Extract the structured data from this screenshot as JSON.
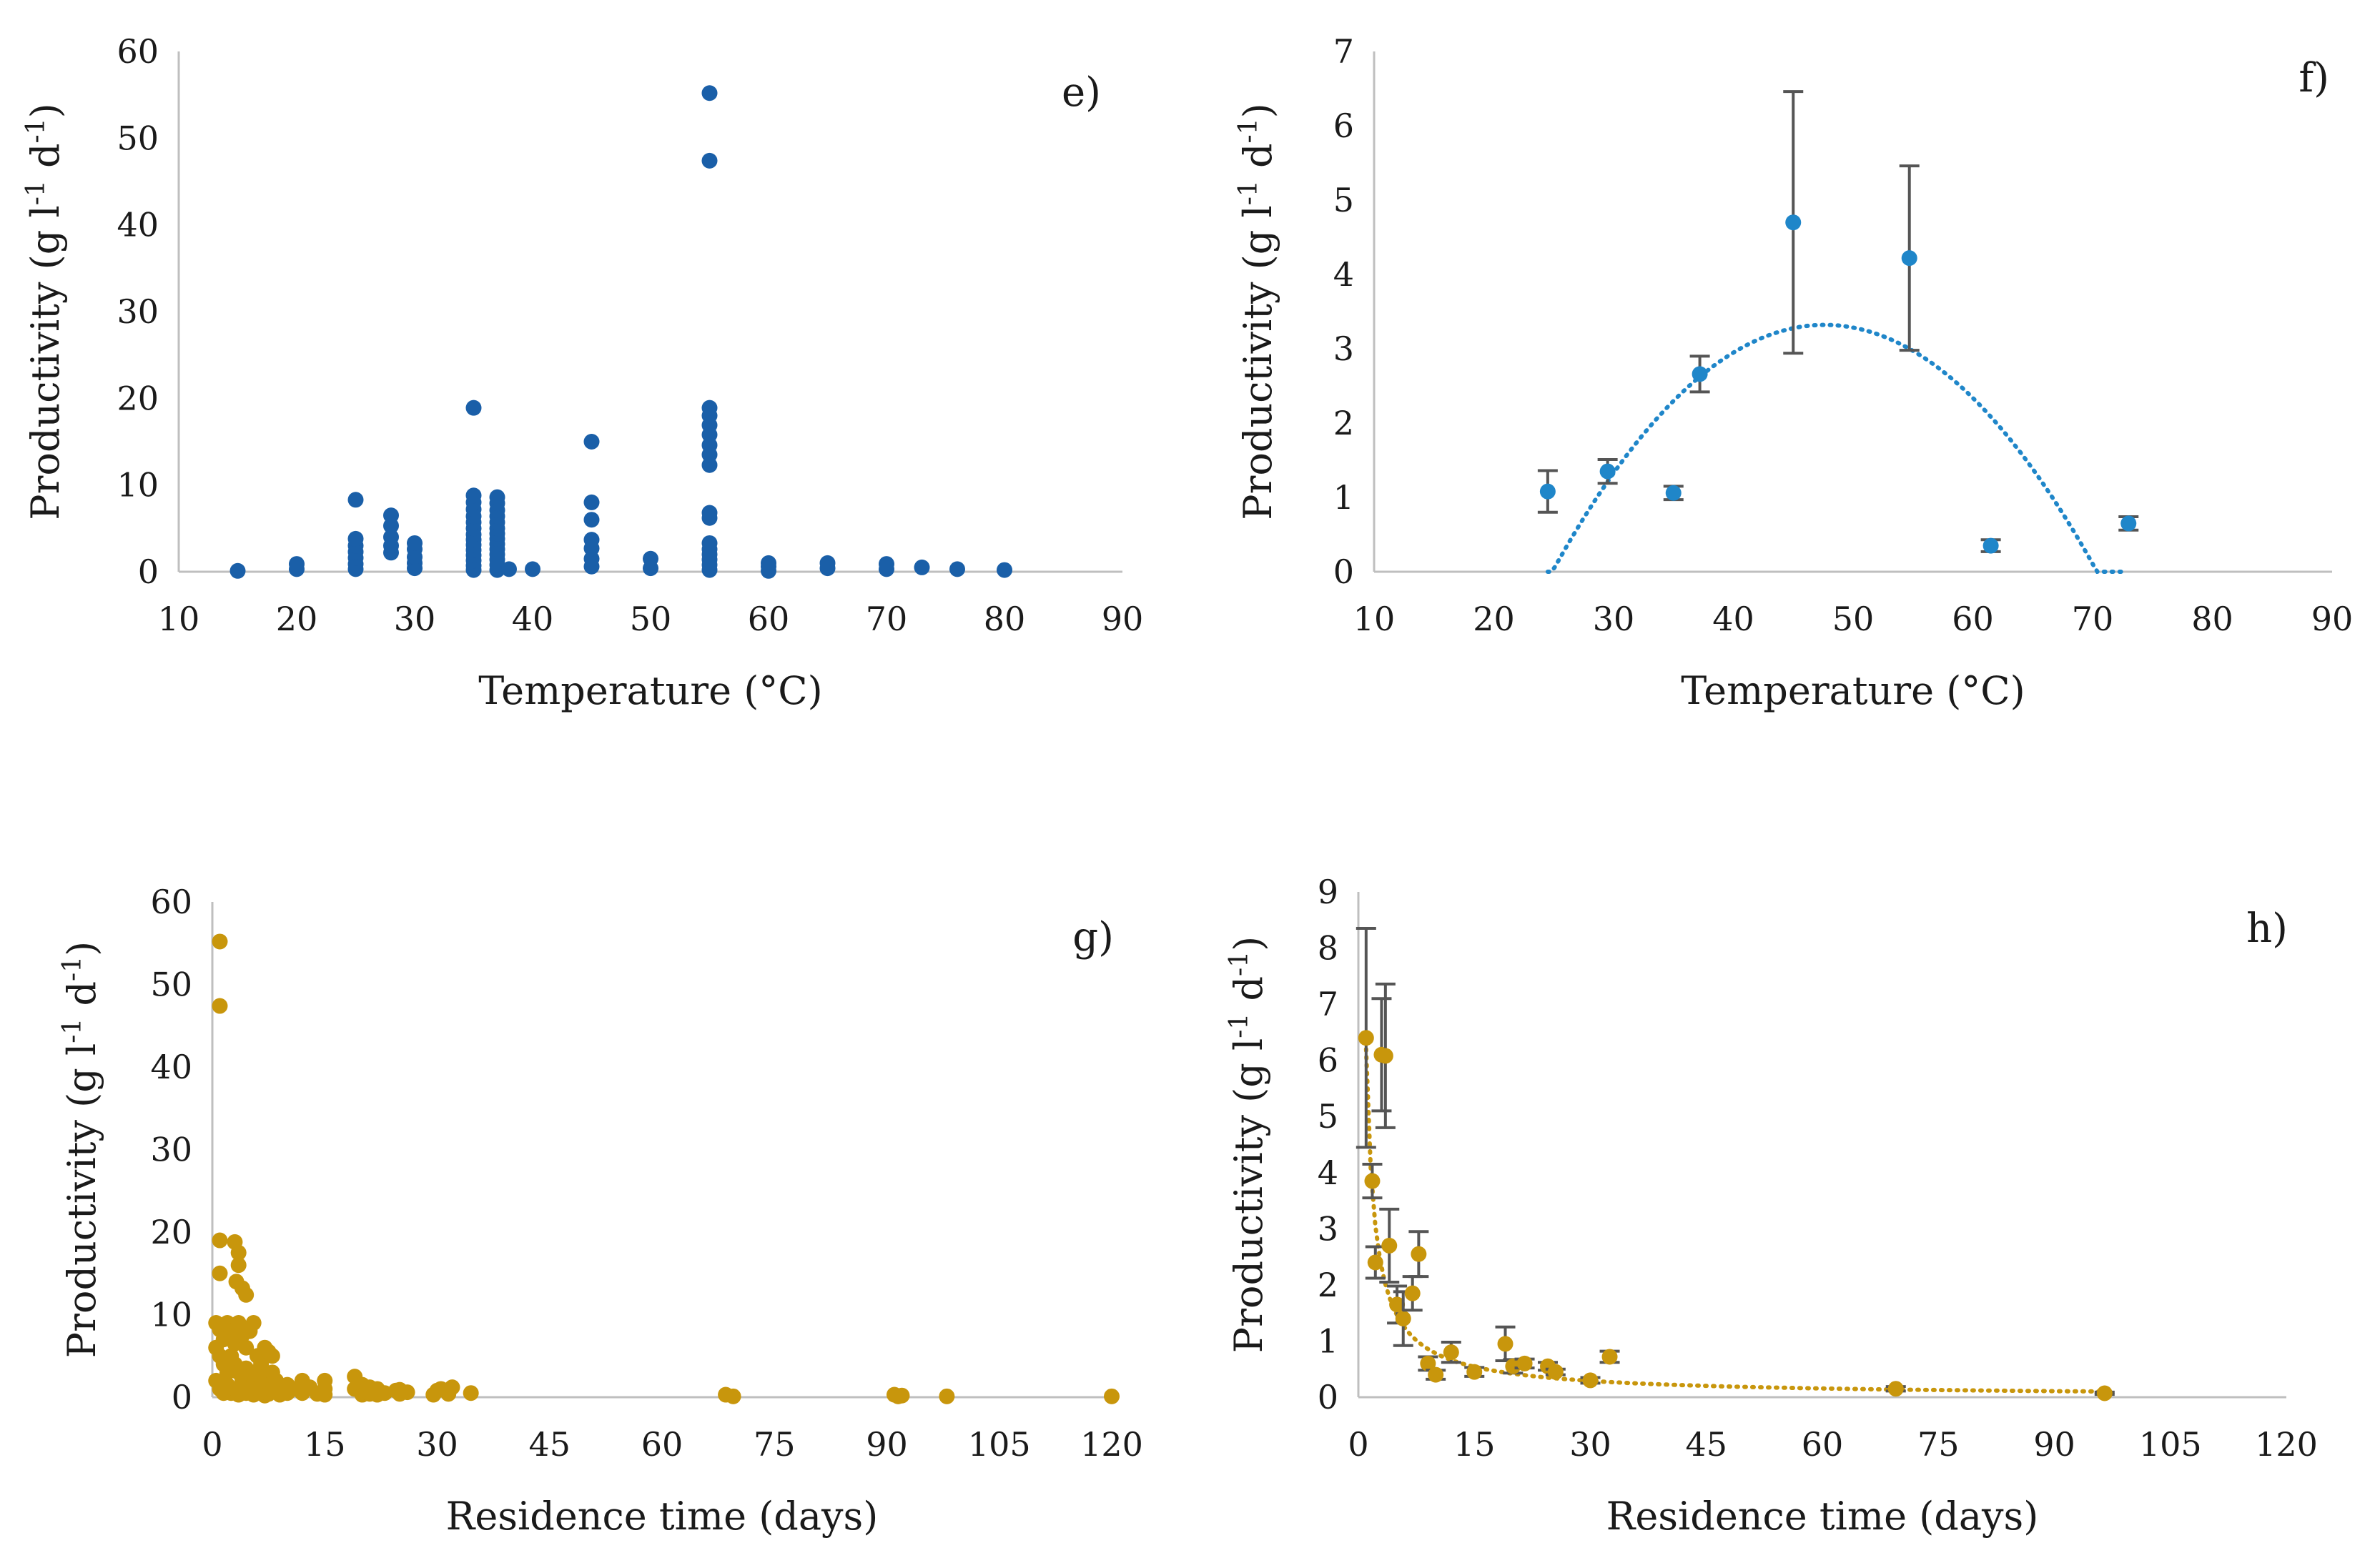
{
  "colors": {
    "blue": "#1a5fa8",
    "blue_light": "#1f86c9",
    "gold": "#c8960c",
    "errorbar": "#555555",
    "axis": "#bfbfbf",
    "text": "#1a1a1a"
  },
  "chart_data": [
    {
      "panel": "e)",
      "type": "scatter",
      "title": "",
      "xlabel": "Temperature (°C)",
      "ylabel": "Productivity (g l-1 d-1)",
      "xlim": [
        10,
        90
      ],
      "ylim": [
        0,
        60
      ],
      "xticks": [
        10,
        20,
        30,
        40,
        50,
        60,
        70,
        80,
        90
      ],
      "yticks": [
        0,
        10,
        20,
        30,
        40,
        50,
        60
      ],
      "grid": false,
      "marker_color": "#1a5fa8",
      "points": [
        [
          15,
          0.1
        ],
        [
          20,
          0.3
        ],
        [
          20,
          0.9
        ],
        [
          25,
          0.3
        ],
        [
          25,
          0.9
        ],
        [
          25,
          1.6
        ],
        [
          25,
          2.3
        ],
        [
          25,
          3.0
        ],
        [
          25,
          3.8
        ],
        [
          25,
          8.3
        ],
        [
          28,
          2.2
        ],
        [
          28,
          3.0
        ],
        [
          28,
          4.0
        ],
        [
          28,
          5.3
        ],
        [
          28,
          6.5
        ],
        [
          30,
          0.4
        ],
        [
          30,
          1.0
        ],
        [
          30,
          1.7
        ],
        [
          30,
          2.6
        ],
        [
          30,
          3.3
        ],
        [
          35,
          0.2
        ],
        [
          35,
          0.7
        ],
        [
          35,
          1.3
        ],
        [
          35,
          1.9
        ],
        [
          35,
          2.5
        ],
        [
          35,
          3.1
        ],
        [
          35,
          3.7
        ],
        [
          35,
          4.3
        ],
        [
          35,
          5.0
        ],
        [
          35,
          5.7
        ],
        [
          35,
          6.4
        ],
        [
          35,
          7.2
        ],
        [
          35,
          8.0
        ],
        [
          35,
          8.8
        ],
        [
          35,
          18.9
        ],
        [
          37,
          0.2
        ],
        [
          37,
          0.8
        ],
        [
          37,
          1.4
        ],
        [
          37,
          2.0
        ],
        [
          37,
          2.6
        ],
        [
          37,
          3.2
        ],
        [
          37,
          3.8
        ],
        [
          37,
          4.4
        ],
        [
          37,
          5.0
        ],
        [
          37,
          5.7
        ],
        [
          37,
          6.4
        ],
        [
          37,
          7.1
        ],
        [
          37,
          7.9
        ],
        [
          37,
          8.6
        ],
        [
          38,
          0.3
        ],
        [
          40,
          0.3
        ],
        [
          45,
          0.6
        ],
        [
          45,
          1.5
        ],
        [
          45,
          2.7
        ],
        [
          45,
          3.7
        ],
        [
          45,
          6.0
        ],
        [
          45,
          8.0
        ],
        [
          45,
          15.0
        ],
        [
          50,
          0.4
        ],
        [
          50,
          1.5
        ],
        [
          55,
          0.2
        ],
        [
          55,
          0.8
        ],
        [
          55,
          1.4
        ],
        [
          55,
          2.0
        ],
        [
          55,
          2.6
        ],
        [
          55,
          3.3
        ],
        [
          55,
          6.2
        ],
        [
          55,
          6.8
        ],
        [
          55,
          12.3
        ],
        [
          55,
          13.5
        ],
        [
          55,
          14.6
        ],
        [
          55,
          15.8
        ],
        [
          55,
          16.9
        ],
        [
          55,
          18.0
        ],
        [
          55,
          18.9
        ],
        [
          55,
          47.4
        ],
        [
          55,
          55.2
        ],
        [
          60,
          0.1
        ],
        [
          60,
          0.6
        ],
        [
          60,
          1.0
        ],
        [
          65,
          0.4
        ],
        [
          65,
          1.0
        ],
        [
          70,
          0.3
        ],
        [
          70,
          0.9
        ],
        [
          73,
          0.5
        ],
        [
          76,
          0.3
        ],
        [
          80,
          0.2
        ]
      ]
    },
    {
      "panel": "f)",
      "type": "scatter",
      "title": "",
      "xlabel": "Temperature (°C)",
      "ylabel": "Productivity (g l-1 d-1)",
      "xlim": [
        10,
        90
      ],
      "ylim": [
        0,
        7
      ],
      "xticks": [
        10,
        20,
        30,
        40,
        50,
        60,
        70,
        80,
        90
      ],
      "yticks": [
        0,
        1,
        2,
        3,
        4,
        5,
        6,
        7
      ],
      "grid": false,
      "marker_color": "#1f86c9",
      "points": [
        {
          "x": 24.5,
          "y": 1.08,
          "err": 0.28
        },
        {
          "x": 29.5,
          "y": 1.35,
          "err": 0.16
        },
        {
          "x": 35.0,
          "y": 1.06,
          "err": 0.09
        },
        {
          "x": 37.2,
          "y": 2.66,
          "err": 0.24
        },
        {
          "x": 45.0,
          "y": 4.7,
          "err": 1.76
        },
        {
          "x": 54.7,
          "y": 4.22,
          "err": 1.24
        },
        {
          "x": 61.5,
          "y": 0.35,
          "err": 0.08
        },
        {
          "x": 73.0,
          "y": 0.65,
          "err": 0.09
        }
      ],
      "trendline": {
        "style": "dotted",
        "type": "polynomial-2",
        "x_range": [
          24.5,
          72.5
        ],
        "coefficients": [
          -0.00642,
          0.6115,
          -11.24
        ]
      }
    },
    {
      "panel": "g)",
      "type": "scatter",
      "title": "",
      "xlabel": "Residence time (days)",
      "ylabel": "Productivity (g l-1 d-1)",
      "xlim": [
        0,
        120
      ],
      "ylim": [
        0,
        60
      ],
      "xticks": [
        0,
        15,
        30,
        45,
        60,
        75,
        90,
        105,
        120
      ],
      "yticks": [
        0,
        10,
        20,
        30,
        40,
        50,
        60
      ],
      "grid": false,
      "marker_color": "#c8960c",
      "points": [
        [
          1,
          55.2
        ],
        [
          1,
          47.4
        ],
        [
          1,
          19.0
        ],
        [
          1,
          15.0
        ],
        [
          3,
          18.8
        ],
        [
          3.5,
          17.5
        ],
        [
          3.5,
          16.0
        ],
        [
          3.2,
          14.0
        ],
        [
          4.0,
          13.2
        ],
        [
          4.5,
          12.4
        ],
        [
          0.5,
          9.0
        ],
        [
          1.0,
          8.2
        ],
        [
          1.5,
          7.0
        ],
        [
          2.0,
          9.0
        ],
        [
          2.5,
          8.0
        ],
        [
          3.0,
          6.5
        ],
        [
          3.5,
          9.0
        ],
        [
          4.0,
          7.5
        ],
        [
          4.5,
          6.0
        ],
        [
          5.0,
          8.0
        ],
        [
          5.5,
          9.0
        ],
        [
          6.0,
          5.0
        ],
        [
          6.5,
          4.0
        ],
        [
          7.0,
          6.0
        ],
        [
          7.5,
          5.5
        ],
        [
          8.0,
          5.0
        ],
        [
          0.5,
          6.0
        ],
        [
          1.0,
          5.0
        ],
        [
          1.5,
          4.0
        ],
        [
          2.0,
          3.0
        ],
        [
          2.5,
          5.0
        ],
        [
          3.0,
          4.0
        ],
        [
          3.5,
          3.0
        ],
        [
          4.0,
          2.0
        ],
        [
          4.5,
          3.5
        ],
        [
          5.0,
          2.5
        ],
        [
          5.5,
          3.0
        ],
        [
          6.0,
          2.0
        ],
        [
          6.5,
          1.5
        ],
        [
          7.0,
          2.5
        ],
        [
          7.5,
          1.0
        ],
        [
          8.0,
          3.0
        ],
        [
          8.5,
          2.0
        ],
        [
          0.5,
          2.0
        ],
        [
          1.0,
          1.0
        ],
        [
          1.5,
          0.5
        ],
        [
          2.0,
          1.5
        ],
        [
          2.5,
          0.5
        ],
        [
          3.0,
          1.0
        ],
        [
          3.5,
          0.3
        ],
        [
          4.0,
          1.2
        ],
        [
          4.5,
          0.5
        ],
        [
          5.0,
          1.0
        ],
        [
          5.5,
          0.3
        ],
        [
          6.0,
          1.0
        ],
        [
          6.5,
          0.5
        ],
        [
          7.0,
          0.2
        ],
        [
          7.5,
          0.4
        ],
        [
          8.0,
          0.8
        ],
        [
          9.0,
          0.3
        ],
        [
          10.0,
          0.5
        ],
        [
          10.0,
          1.5
        ],
        [
          11.0,
          1.0
        ],
        [
          12.0,
          0.5
        ],
        [
          12.0,
          2.0
        ],
        [
          13.0,
          1.2
        ],
        [
          14.0,
          0.4
        ],
        [
          15.0,
          0.3
        ],
        [
          15.0,
          1.0
        ],
        [
          15.0,
          2.0
        ],
        [
          19.0,
          2.5
        ],
        [
          19.0,
          1.0
        ],
        [
          20.0,
          0.3
        ],
        [
          20.0,
          1.5
        ],
        [
          20.5,
          0.6
        ],
        [
          21.0,
          0.4
        ],
        [
          21.0,
          1.2
        ],
        [
          22.0,
          0.3
        ],
        [
          22.0,
          1.0
        ],
        [
          23.0,
          0.5
        ],
        [
          24.5,
          0.8
        ],
        [
          25.0,
          0.4
        ],
        [
          25.0,
          0.9
        ],
        [
          26.0,
          0.6
        ],
        [
          29.5,
          0.3
        ],
        [
          30.0,
          0.8
        ],
        [
          30.5,
          1.0
        ],
        [
          31.5,
          0.4
        ],
        [
          32.0,
          1.2
        ],
        [
          34.5,
          0.5
        ],
        [
          68.5,
          0.3
        ],
        [
          69.5,
          0.1
        ],
        [
          91.0,
          0.3
        ],
        [
          91.5,
          0.1
        ],
        [
          92.0,
          0.2
        ],
        [
          98.0,
          0.1
        ],
        [
          120.0,
          0.1
        ]
      ]
    },
    {
      "panel": "h)",
      "type": "scatter",
      "title": "",
      "xlabel": "Residence time (days)",
      "ylabel": "Productivity (g l-1 d-1)",
      "xlim": [
        0,
        120
      ],
      "ylim": [
        0,
        9
      ],
      "xticks": [
        0,
        15,
        30,
        45,
        60,
        75,
        90,
        105,
        120
      ],
      "yticks": [
        0,
        1,
        2,
        3,
        4,
        5,
        6,
        7,
        8,
        9
      ],
      "grid": false,
      "marker_color": "#c8960c",
      "points": [
        {
          "x": 1.0,
          "y": 6.4,
          "err": 1.95
        },
        {
          "x": 1.8,
          "y": 3.85,
          "err": 0.3
        },
        {
          "x": 2.2,
          "y": 2.4,
          "err": 0.28
        },
        {
          "x": 3.0,
          "y": 6.1,
          "err": 1.0
        },
        {
          "x": 3.5,
          "y": 6.08,
          "err": 1.28
        },
        {
          "x": 4.0,
          "y": 2.7,
          "err": 0.65
        },
        {
          "x": 5.0,
          "y": 1.65,
          "err": 0.33
        },
        {
          "x": 5.8,
          "y": 1.4,
          "err": 0.48
        },
        {
          "x": 7.0,
          "y": 1.85,
          "err": 0.3
        },
        {
          "x": 7.8,
          "y": 2.55,
          "err": 0.4
        },
        {
          "x": 9.0,
          "y": 0.6,
          "err": 0.12
        },
        {
          "x": 10.0,
          "y": 0.4,
          "err": 0.08
        },
        {
          "x": 12.0,
          "y": 0.8,
          "err": 0.18
        },
        {
          "x": 15.0,
          "y": 0.45,
          "err": 0.08
        },
        {
          "x": 19.0,
          "y": 0.95,
          "err": 0.3
        },
        {
          "x": 20.0,
          "y": 0.55,
          "err": 0.12
        },
        {
          "x": 21.5,
          "y": 0.6,
          "err": 0.08
        },
        {
          "x": 24.5,
          "y": 0.55,
          "err": 0.07
        },
        {
          "x": 25.5,
          "y": 0.45,
          "err": 0.05
        },
        {
          "x": 30.0,
          "y": 0.3,
          "err": 0.05
        },
        {
          "x": 32.5,
          "y": 0.72,
          "err": 0.1
        },
        {
          "x": 69.5,
          "y": 0.15,
          "err": 0.04
        },
        {
          "x": 96.5,
          "y": 0.07,
          "err": 0.02
        }
      ],
      "trendline": {
        "style": "dotted",
        "type": "power",
        "x_range": [
          1.0,
          96.5
        ],
        "coefficients": [
          6.2,
          -0.9
        ]
      }
    }
  ]
}
